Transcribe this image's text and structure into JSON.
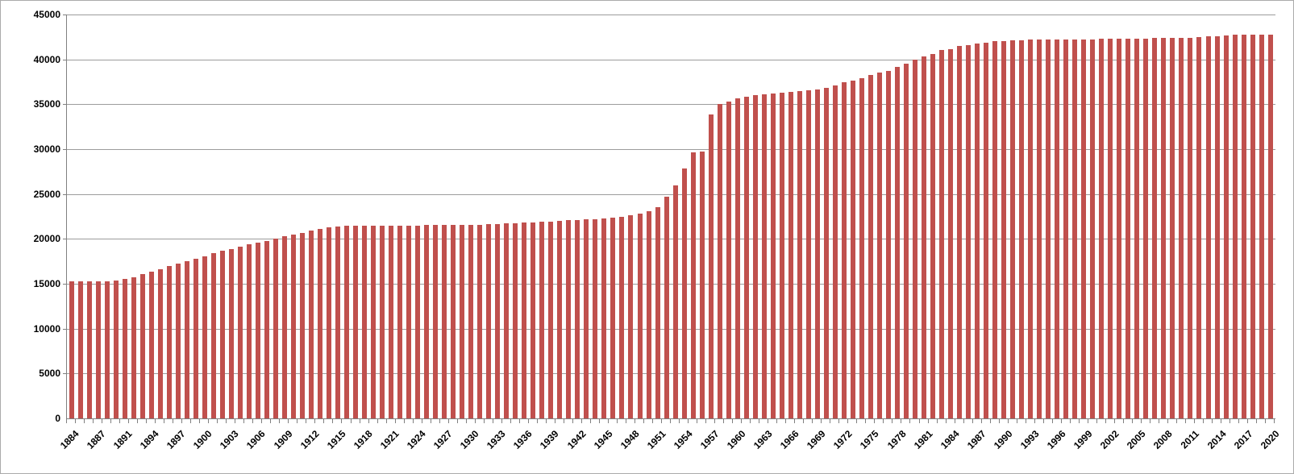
{
  "chart_data": {
    "type": "bar",
    "title": "",
    "xlabel": "",
    "ylabel": "",
    "ylim": [
      0,
      45000
    ],
    "y_ticks": [
      0,
      5000,
      10000,
      15000,
      20000,
      25000,
      30000,
      35000,
      40000,
      45000
    ],
    "x_label_every": 3,
    "legend_position": "none",
    "grid": "horizontal",
    "bar_color": "#c0504d",
    "gridline_color": "#9c9c9c",
    "axis_color": "#808080",
    "categories": [
      1884,
      1885,
      1886,
      1887,
      1888,
      1889,
      1891,
      1892,
      1893,
      1894,
      1895,
      1896,
      1897,
      1898,
      1899,
      1900,
      1901,
      1902,
      1903,
      1904,
      1905,
      1906,
      1907,
      1908,
      1909,
      1910,
      1911,
      1912,
      1913,
      1914,
      1915,
      1916,
      1917,
      1918,
      1919,
      1920,
      1921,
      1922,
      1923,
      1924,
      1925,
      1926,
      1927,
      1928,
      1929,
      1930,
      1931,
      1932,
      1933,
      1934,
      1935,
      1936,
      1937,
      1938,
      1939,
      1940,
      1941,
      1942,
      1943,
      1944,
      1945,
      1946,
      1947,
      1948,
      1949,
      1950,
      1951,
      1952,
      1953,
      1954,
      1955,
      1956,
      1957,
      1958,
      1959,
      1960,
      1961,
      1962,
      1963,
      1964,
      1965,
      1966,
      1967,
      1968,
      1969,
      1970,
      1971,
      1972,
      1973,
      1974,
      1975,
      1976,
      1977,
      1978,
      1979,
      1980,
      1981,
      1982,
      1983,
      1984,
      1985,
      1986,
      1987,
      1988,
      1989,
      1990,
      1991,
      1992,
      1993,
      1994,
      1995,
      1996,
      1997,
      1998,
      1999,
      2000,
      2001,
      2002,
      2003,
      2004,
      2005,
      2006,
      2007,
      2008,
      2009,
      2010,
      2011,
      2012,
      2013,
      2014,
      2015,
      2016,
      2017,
      2018,
      2019,
      2020
    ],
    "values": [
      15250,
      15250,
      15250,
      15250,
      15250,
      15350,
      15500,
      15750,
      16050,
      16350,
      16650,
      16950,
      17250,
      17550,
      17800,
      18100,
      18400,
      18650,
      18900,
      19150,
      19400,
      19600,
      19800,
      20050,
      20280,
      20480,
      20700,
      20900,
      21100,
      21280,
      21400,
      21450,
      21470,
      21480,
      21480,
      21480,
      21490,
      21500,
      21500,
      21510,
      21520,
      21530,
      21540,
      21550,
      21560,
      21580,
      21600,
      21630,
      21660,
      21700,
      21750,
      21800,
      21850,
      21900,
      21960,
      22020,
      22080,
      22120,
      22170,
      22210,
      22270,
      22360,
      22480,
      22600,
      22780,
      23080,
      23490,
      24690,
      25980,
      27840,
      29600,
      29730,
      33890,
      35030,
      35330,
      35630,
      35840,
      36050,
      36110,
      36200,
      36290,
      36380,
      36440,
      36530,
      36680,
      36830,
      37070,
      37490,
      37670,
      37910,
      38230,
      38540,
      38750,
      39140,
      39530,
      39980,
      40340,
      40640,
      41030,
      41180,
      41470,
      41620,
      41770,
      41890,
      42010,
      42070,
      42130,
      42160,
      42190,
      42220,
      42220,
      42230,
      42240,
      42250,
      42250,
      42260,
      42270,
      42280,
      42280,
      42300,
      42310,
      42340,
      42370,
      42370,
      42400,
      42400,
      42420,
      42480,
      42550,
      42620,
      42690,
      42760,
      42740,
      42760,
      42740,
      42750
    ]
  }
}
